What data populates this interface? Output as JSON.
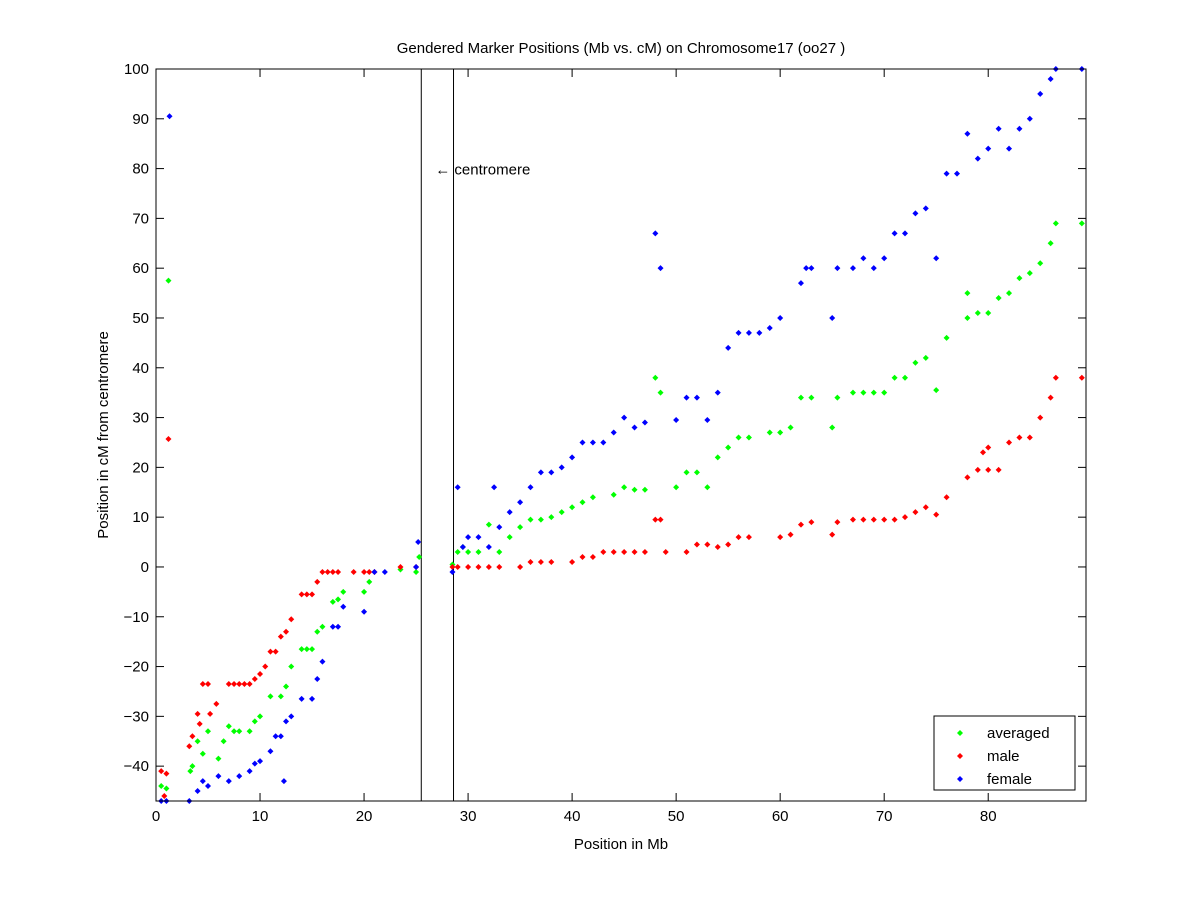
{
  "chart_data": {
    "type": "scatter",
    "title": "Gendered Marker Positions (Mb vs. cM) on Chromosome17 (oo27 )",
    "xlabel": "Position in Mb",
    "ylabel": "Position in cM from centromere",
    "xlim": [
      0,
      89.4
    ],
    "ylim": [
      -47,
      100
    ],
    "xticks": [
      0,
      10,
      20,
      30,
      40,
      50,
      60,
      70,
      80
    ],
    "yticks": [
      -40,
      -30,
      -20,
      -10,
      0,
      10,
      20,
      30,
      40,
      50,
      60,
      70,
      80,
      90,
      100
    ],
    "grid": false,
    "legend_position": "bottom-right",
    "centromere": {
      "lines": [
        25.5,
        28.6
      ],
      "label": "centromere",
      "arrow": "←",
      "label_y": 80
    },
    "series": [
      {
        "name": "averaged",
        "color": "#00ff00",
        "points": [
          [
            0.5,
            -44
          ],
          [
            1,
            -44.5
          ],
          [
            1.2,
            57.5
          ],
          [
            3.3,
            -41
          ],
          [
            3.5,
            -40
          ],
          [
            4,
            -35
          ],
          [
            4.5,
            -37.5
          ],
          [
            5,
            -33
          ],
          [
            6,
            -38.5
          ],
          [
            6.5,
            -35
          ],
          [
            7,
            -32
          ],
          [
            7.5,
            -33
          ],
          [
            8,
            -33
          ],
          [
            9,
            -33
          ],
          [
            9.5,
            -31
          ],
          [
            10,
            -30
          ],
          [
            11,
            -26
          ],
          [
            12,
            -26
          ],
          [
            12.5,
            -24
          ],
          [
            13,
            -20
          ],
          [
            14,
            -16.5
          ],
          [
            14.5,
            -16.5
          ],
          [
            15,
            -16.5
          ],
          [
            15.5,
            -13
          ],
          [
            16,
            -12
          ],
          [
            17,
            -7
          ],
          [
            17.5,
            -6.5
          ],
          [
            18,
            -5
          ],
          [
            20,
            -5
          ],
          [
            20.5,
            -3
          ],
          [
            23.5,
            -0.5
          ],
          [
            25,
            -1
          ],
          [
            25.3,
            2
          ],
          [
            28.5,
            0.5
          ],
          [
            29,
            3
          ],
          [
            29.5,
            4
          ],
          [
            30,
            3
          ],
          [
            31,
            3
          ],
          [
            32,
            8.5
          ],
          [
            33,
            3
          ],
          [
            34,
            6
          ],
          [
            35,
            8
          ],
          [
            36,
            9.5
          ],
          [
            37,
            9.5
          ],
          [
            38,
            10
          ],
          [
            39,
            11
          ],
          [
            40,
            12
          ],
          [
            41,
            13
          ],
          [
            42,
            14
          ],
          [
            44,
            14.5
          ],
          [
            45,
            16
          ],
          [
            46,
            15.5
          ],
          [
            47,
            15.5
          ],
          [
            48,
            38
          ],
          [
            48.5,
            35
          ],
          [
            50,
            16
          ],
          [
            51,
            19
          ],
          [
            52,
            19
          ],
          [
            53,
            16
          ],
          [
            54,
            22
          ],
          [
            55,
            24
          ],
          [
            56,
            26
          ],
          [
            57,
            26
          ],
          [
            59,
            27
          ],
          [
            60,
            27
          ],
          [
            61,
            28
          ],
          [
            62,
            34
          ],
          [
            63,
            34
          ],
          [
            65,
            28
          ],
          [
            65.5,
            34
          ],
          [
            67,
            35
          ],
          [
            68,
            35
          ],
          [
            69,
            35
          ],
          [
            70,
            35
          ],
          [
            71,
            38
          ],
          [
            72,
            38
          ],
          [
            73,
            41
          ],
          [
            74,
            42
          ],
          [
            75,
            35.5
          ],
          [
            76,
            46
          ],
          [
            78,
            50
          ],
          [
            78,
            55
          ],
          [
            79,
            51
          ],
          [
            80,
            51
          ],
          [
            81,
            54
          ],
          [
            82,
            55
          ],
          [
            83,
            58
          ],
          [
            84,
            59
          ],
          [
            85,
            61
          ],
          [
            86,
            65
          ],
          [
            86.5,
            69
          ],
          [
            89,
            69
          ]
        ]
      },
      {
        "name": "male",
        "color": "#ff0000",
        "points": [
          [
            0.5,
            -41
          ],
          [
            1,
            -41.5
          ],
          [
            0.8,
            -46
          ],
          [
            1.2,
            25.7
          ],
          [
            3.2,
            -36
          ],
          [
            3.5,
            -34
          ],
          [
            4,
            -29.5
          ],
          [
            4.2,
            -31.5
          ],
          [
            4.5,
            -23.5
          ],
          [
            5,
            -23.5
          ],
          [
            5.2,
            -29.5
          ],
          [
            5.8,
            -27.5
          ],
          [
            7,
            -23.5
          ],
          [
            7.5,
            -23.5
          ],
          [
            8,
            -23.5
          ],
          [
            8.5,
            -23.5
          ],
          [
            9,
            -23.5
          ],
          [
            9.5,
            -22.5
          ],
          [
            10,
            -21.5
          ],
          [
            10.5,
            -20
          ],
          [
            11,
            -17
          ],
          [
            11.5,
            -17
          ],
          [
            12,
            -14
          ],
          [
            12.5,
            -13
          ],
          [
            13,
            -10.5
          ],
          [
            14,
            -5.5
          ],
          [
            14.5,
            -5.5
          ],
          [
            15,
            -5.5
          ],
          [
            15.5,
            -3
          ],
          [
            16,
            -1
          ],
          [
            16.5,
            -1
          ],
          [
            17,
            -1
          ],
          [
            17.5,
            -1
          ],
          [
            19,
            -1
          ],
          [
            20,
            -1
          ],
          [
            20.5,
            -1
          ],
          [
            21,
            -1
          ],
          [
            23.5,
            0
          ],
          [
            25,
            0
          ],
          [
            28.5,
            0
          ],
          [
            29,
            0
          ],
          [
            30,
            0
          ],
          [
            31,
            0
          ],
          [
            32,
            0
          ],
          [
            33,
            0
          ],
          [
            35,
            0
          ],
          [
            36,
            1
          ],
          [
            37,
            1
          ],
          [
            38,
            1
          ],
          [
            40,
            1
          ],
          [
            41,
            2
          ],
          [
            42,
            2
          ],
          [
            43,
            3
          ],
          [
            44,
            3
          ],
          [
            45,
            3
          ],
          [
            46,
            3
          ],
          [
            47,
            3
          ],
          [
            48,
            9.5
          ],
          [
            48.5,
            9.5
          ],
          [
            49,
            3
          ],
          [
            51,
            3
          ],
          [
            52,
            4.5
          ],
          [
            53,
            4.5
          ],
          [
            54,
            4
          ],
          [
            55,
            4.5
          ],
          [
            56,
            6
          ],
          [
            57,
            6
          ],
          [
            60,
            6
          ],
          [
            61,
            6.5
          ],
          [
            62,
            8.5
          ],
          [
            63,
            9
          ],
          [
            65,
            6.5
          ],
          [
            65.5,
            9
          ],
          [
            67,
            9.5
          ],
          [
            68,
            9.5
          ],
          [
            69,
            9.5
          ],
          [
            70,
            9.5
          ],
          [
            71,
            9.5
          ],
          [
            72,
            10
          ],
          [
            73,
            11
          ],
          [
            74,
            12
          ],
          [
            75,
            10.5
          ],
          [
            76,
            14
          ],
          [
            78,
            18
          ],
          [
            79,
            19.5
          ],
          [
            80,
            19.5
          ],
          [
            81,
            19.5
          ],
          [
            79.5,
            23
          ],
          [
            80,
            24
          ],
          [
            82,
            25
          ],
          [
            83,
            26
          ],
          [
            84,
            26
          ],
          [
            85,
            30
          ],
          [
            86,
            34
          ],
          [
            86.5,
            38
          ],
          [
            89,
            38
          ]
        ]
      },
      {
        "name": "female",
        "color": "#0000ff",
        "points": [
          [
            0.5,
            -47
          ],
          [
            1,
            -47
          ],
          [
            1.3,
            90.5
          ],
          [
            3.2,
            -47
          ],
          [
            4,
            -45
          ],
          [
            4.5,
            -43
          ],
          [
            5,
            -44
          ],
          [
            6,
            -42
          ],
          [
            7,
            -43
          ],
          [
            8,
            -42
          ],
          [
            9,
            -41
          ],
          [
            9.5,
            -39.5
          ],
          [
            10,
            -39
          ],
          [
            11,
            -37
          ],
          [
            11.5,
            -34
          ],
          [
            12,
            -34
          ],
          [
            12.3,
            -43
          ],
          [
            12.5,
            -31
          ],
          [
            13,
            -30
          ],
          [
            14,
            -26.5
          ],
          [
            15,
            -26.5
          ],
          [
            15.5,
            -22.5
          ],
          [
            16,
            -19
          ],
          [
            17,
            -12
          ],
          [
            17.5,
            -12
          ],
          [
            18,
            -8
          ],
          [
            20,
            -9
          ],
          [
            21,
            -1
          ],
          [
            22,
            -1
          ],
          [
            25,
            0
          ],
          [
            25.2,
            5
          ],
          [
            28.5,
            -1
          ],
          [
            29,
            16
          ],
          [
            29.5,
            4
          ],
          [
            30,
            6
          ],
          [
            31,
            6
          ],
          [
            32,
            4
          ],
          [
            32.5,
            16
          ],
          [
            33,
            8
          ],
          [
            34,
            11
          ],
          [
            35,
            13
          ],
          [
            36,
            16
          ],
          [
            37,
            19
          ],
          [
            38,
            19
          ],
          [
            39,
            20
          ],
          [
            40,
            22
          ],
          [
            41,
            25
          ],
          [
            42,
            25
          ],
          [
            43,
            25
          ],
          [
            44,
            27
          ],
          [
            45,
            30
          ],
          [
            46,
            28
          ],
          [
            47,
            29
          ],
          [
            48,
            67
          ],
          [
            48.5,
            60
          ],
          [
            50,
            29.5
          ],
          [
            51,
            34
          ],
          [
            52,
            34
          ],
          [
            53,
            29.5
          ],
          [
            54,
            35
          ],
          [
            55,
            44
          ],
          [
            56,
            47
          ],
          [
            57,
            47
          ],
          [
            58,
            47
          ],
          [
            59,
            48
          ],
          [
            60,
            50
          ],
          [
            62,
            57
          ],
          [
            62.5,
            60
          ],
          [
            63,
            60
          ],
          [
            65,
            50
          ],
          [
            65.5,
            60
          ],
          [
            67,
            60
          ],
          [
            68,
            62
          ],
          [
            69,
            60
          ],
          [
            70,
            62
          ],
          [
            71,
            67
          ],
          [
            72,
            67
          ],
          [
            73,
            71
          ],
          [
            74,
            72
          ],
          [
            75,
            62
          ],
          [
            76,
            79
          ],
          [
            77,
            79
          ],
          [
            78,
            87
          ],
          [
            79,
            82
          ],
          [
            80,
            84
          ],
          [
            81,
            88
          ],
          [
            82,
            84
          ],
          [
            83,
            88
          ],
          [
            84,
            90
          ],
          [
            85,
            95
          ],
          [
            86,
            98
          ],
          [
            86.5,
            100
          ],
          [
            89,
            100
          ]
        ]
      }
    ]
  }
}
